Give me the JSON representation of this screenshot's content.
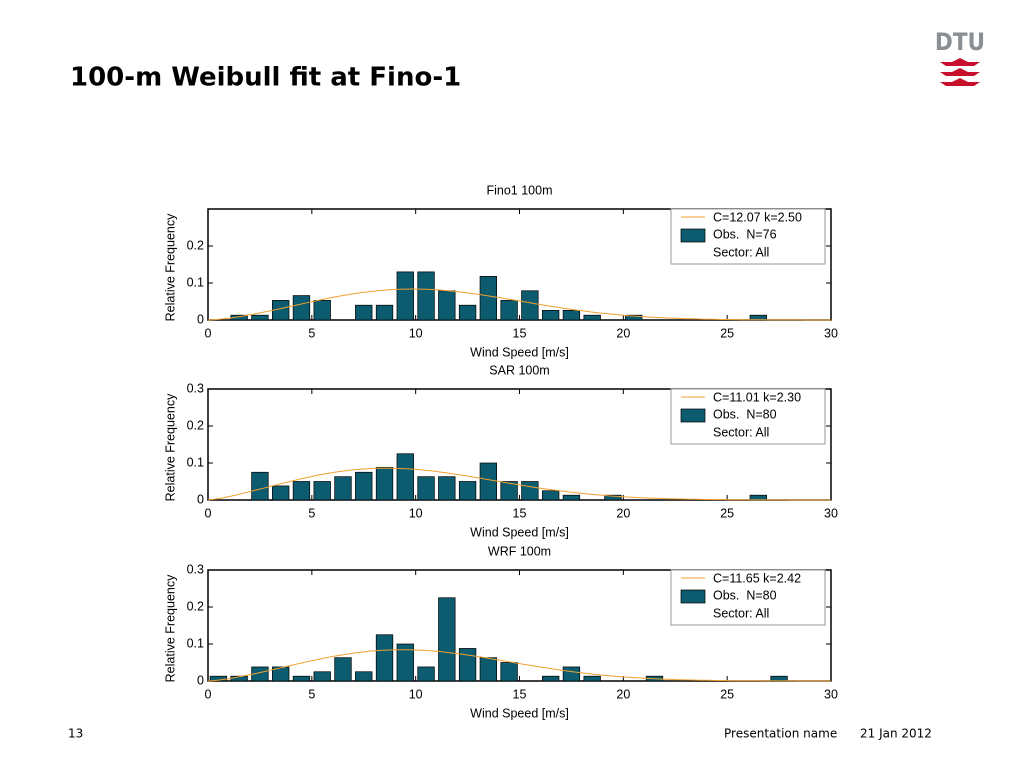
{
  "header": {
    "title": "100-m Weibull fit at Fino-1",
    "logo": "DTU"
  },
  "footer": {
    "page": "13",
    "presentation": "Presentation name",
    "date": "21 Jan 2012"
  },
  "chart_data": [
    {
      "type": "histogram",
      "title": "Fino1 100m",
      "x_label": "Wind Speed [m/s]",
      "y_label": "Relative Frequency",
      "bins": [
        0,
        1,
        2,
        3,
        4,
        5,
        6,
        7,
        8,
        9,
        10,
        11,
        12,
        13,
        14,
        15,
        16,
        17,
        18,
        19,
        20,
        21,
        22,
        23,
        24,
        25,
        26,
        27,
        28,
        29,
        30
      ],
      "series": [
        {
          "name": "Obs.  N=76",
          "color": "#0d5b6e",
          "values": [
            0,
            0.013,
            0.013,
            0.053,
            0.066,
            0.053,
            0,
            0.04,
            0.04,
            0.13,
            0.13,
            0.079,
            0.04,
            0.118,
            0.053,
            0.079,
            0.026,
            0.026,
            0.013,
            0,
            0.013,
            0,
            0,
            0,
            0,
            0,
            0.013,
            0,
            0,
            0
          ]
        }
      ],
      "fit": {
        "name": "C=12.07 k=2.50",
        "color": "#f0a030",
        "C": 12.07,
        "k": 2.5
      },
      "legend_note": "Sector: All",
      "legend": "upper right",
      "xlim": [
        0,
        30
      ],
      "xticks": [
        0,
        5,
        10,
        15,
        20,
        25,
        30
      ],
      "ylim": [
        0,
        0.3
      ],
      "yticks": [
        0,
        0.1,
        0.2
      ]
    },
    {
      "type": "histogram",
      "title": "SAR 100m",
      "x_label": "Wind Speed [m/s]",
      "y_label": "Relative Frequency",
      "bins": [
        0,
        1,
        2,
        3,
        4,
        5,
        6,
        7,
        8,
        9,
        10,
        11,
        12,
        13,
        14,
        15,
        16,
        17,
        18,
        19,
        20,
        21,
        22,
        23,
        24,
        25,
        26,
        27,
        28,
        29,
        30
      ],
      "series": [
        {
          "name": "Obs.  N=80",
          "color": "#0d5b6e",
          "values": [
            0,
            0,
            0.075,
            0.038,
            0.05,
            0.05,
            0.063,
            0.075,
            0.088,
            0.125,
            0.063,
            0.063,
            0.05,
            0.1,
            0.05,
            0.05,
            0.025,
            0.013,
            0,
            0.013,
            0,
            0,
            0,
            0,
            0,
            0,
            0.013,
            0,
            0,
            0
          ]
        }
      ],
      "fit": {
        "name": "C=11.01 k=2.30",
        "color": "#f0a030",
        "C": 11.01,
        "k": 2.3
      },
      "legend_note": "Sector: All",
      "legend": "upper right",
      "xlim": [
        0,
        30
      ],
      "xticks": [
        0,
        5,
        10,
        15,
        20,
        25,
        30
      ],
      "ylim": [
        0,
        0.3
      ],
      "yticks": [
        0,
        0.1,
        0.2,
        0.3
      ]
    },
    {
      "type": "histogram",
      "title": "WRF 100m",
      "x_label": "Wind Speed [m/s]",
      "y_label": "Relative Frequency",
      "bins": [
        0,
        1,
        2,
        3,
        4,
        5,
        6,
        7,
        8,
        9,
        10,
        11,
        12,
        13,
        14,
        15,
        16,
        17,
        18,
        19,
        20,
        21,
        22,
        23,
        24,
        25,
        26,
        27,
        28,
        29,
        30
      ],
      "series": [
        {
          "name": "Obs.  N=80",
          "color": "#0d5b6e",
          "values": [
            0.013,
            0.013,
            0.038,
            0.038,
            0.013,
            0.025,
            0.063,
            0.025,
            0.125,
            0.1,
            0.038,
            0.225,
            0.088,
            0.063,
            0.05,
            0,
            0.013,
            0.038,
            0.013,
            0,
            0,
            0.013,
            0,
            0,
            0,
            0,
            0,
            0.013,
            0,
            0
          ]
        }
      ],
      "fit": {
        "name": "C=11.65 k=2.42",
        "color": "#f0a030",
        "C": 11.65,
        "k": 2.42
      },
      "legend_note": "Sector: All",
      "legend": "upper right",
      "xlim": [
        0,
        30
      ],
      "xticks": [
        0,
        5,
        10,
        15,
        20,
        25,
        30
      ],
      "ylim": [
        0,
        0.3
      ],
      "yticks": [
        0,
        0.1,
        0.2,
        0.3
      ]
    }
  ]
}
